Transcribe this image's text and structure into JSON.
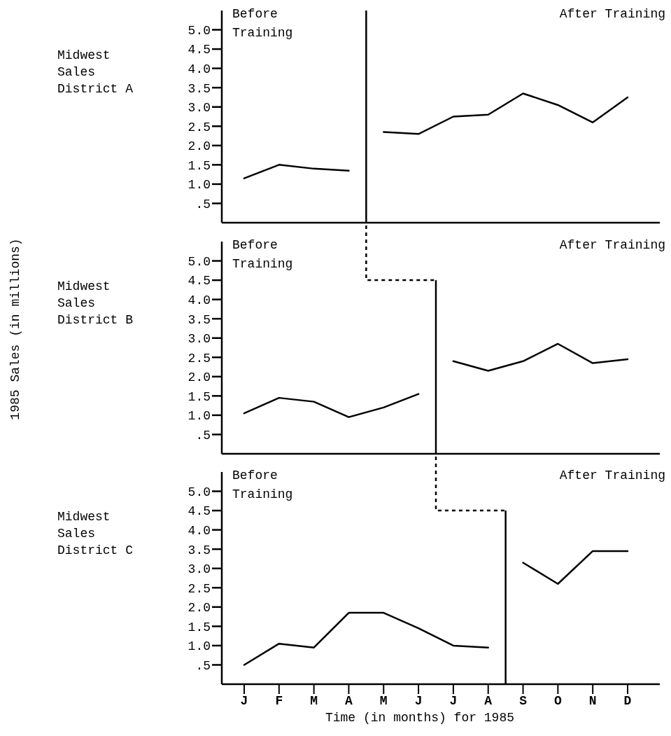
{
  "chart_data": [
    {
      "type": "line",
      "title": "Midwest Sales District A",
      "annotations": [
        "Before Training",
        "After Training"
      ],
      "categories": [
        null,
        null,
        null,
        null,
        null,
        null,
        null,
        null,
        null,
        null,
        null,
        null
      ],
      "series": [
        {
          "color": "#000000",
          "values": [
            1.15,
            1.5,
            1.4,
            1.35,
            null,
            null,
            null,
            null,
            null,
            null,
            null,
            null
          ]
        },
        {
          "color": "#000000",
          "values": [
            null,
            null,
            null,
            null,
            2.35,
            2.3,
            2.75,
            2.8,
            3.35,
            3.05,
            2.6,
            3.25
          ]
        }
      ],
      "ylim": [
        0,
        5.5
      ],
      "yticks": [
        {
          "value": 0.5,
          "label": ".5"
        },
        {
          "value": 1,
          "label": "1.0"
        },
        {
          "value": 1.5,
          "label": "1.5"
        },
        {
          "value": 2,
          "label": "2.0"
        },
        {
          "value": 2.5,
          "label": "2.5"
        },
        {
          "value": 3,
          "label": "3.0"
        },
        {
          "value": 3.5,
          "label": "3.5"
        },
        {
          "value": 4,
          "label": "4.0"
        },
        {
          "value": 4.5,
          "label": "4.5"
        },
        {
          "value": 5,
          "label": "5.0"
        }
      ],
      "tick_labels": "y",
      "marker": "none",
      "line_style": "solid"
    },
    {
      "type": "line",
      "title": "Midwest Sales District B",
      "ylabel": "1985 Sales (in millions)",
      "annotations": [
        "Before Training",
        "After Training"
      ],
      "categories": [
        null,
        null,
        null,
        null,
        null,
        null,
        null,
        null,
        null,
        null,
        null,
        null
      ],
      "series": [
        {
          "color": "#000000",
          "values": [
            1.05,
            1.45,
            1.35,
            0.95,
            1.2,
            1.55,
            null,
            null,
            null,
            null,
            null,
            null
          ]
        },
        {
          "color": "#000000",
          "values": [
            null,
            null,
            null,
            null,
            null,
            null,
            2.4,
            2.15,
            2.4,
            2.85,
            2.35,
            2.45
          ]
        }
      ],
      "ylim": [
        0,
        5.5
      ],
      "yticks": [
        {
          "value": 0.5,
          "label": ".5"
        },
        {
          "value": 1,
          "label": "1.0"
        },
        {
          "value": 1.5,
          "label": "1.5"
        },
        {
          "value": 2,
          "label": "2.0"
        },
        {
          "value": 2.5,
          "label": "2.5"
        },
        {
          "value": 3,
          "label": "3.0"
        },
        {
          "value": 3.5,
          "label": "3.5"
        },
        {
          "value": 4,
          "label": "4.0"
        },
        {
          "value": 4.5,
          "label": "4.5"
        },
        {
          "value": 5,
          "label": "5.0"
        }
      ],
      "tick_labels": "y",
      "marker": "none",
      "line_style": "solid"
    },
    {
      "type": "line",
      "title": "Midwest Sales District C",
      "xlabel": "Time (in months) for 1985",
      "annotations": [
        "Before Training",
        "After Training"
      ],
      "categories": [
        "J",
        "F",
        "M",
        "A",
        "M",
        "J",
        "J",
        "A",
        "S",
        "O",
        "N",
        "D"
      ],
      "series": [
        {
          "color": "#000000",
          "values": [
            0.5,
            1.05,
            0.95,
            1.85,
            1.85,
            1.45,
            1.0,
            0.95,
            null,
            null,
            null,
            null
          ]
        },
        {
          "color": "#000000",
          "values": [
            null,
            null,
            null,
            null,
            null,
            null,
            null,
            null,
            3.15,
            2.6,
            3.45,
            3.45
          ]
        }
      ],
      "ylim": [
        0,
        5.5
      ],
      "yticks": [
        {
          "value": 0.5,
          "label": ".5"
        },
        {
          "value": 1,
          "label": "1.0"
        },
        {
          "value": 1.5,
          "label": "1.5"
        },
        {
          "value": 2,
          "label": "2.0"
        },
        {
          "value": 2.5,
          "label": "2.5"
        },
        {
          "value": 3,
          "label": "3.0"
        },
        {
          "value": 3.5,
          "label": "3.5"
        },
        {
          "value": 4,
          "label": "4.0"
        },
        {
          "value": 4.5,
          "label": "4.5"
        },
        {
          "value": 5,
          "label": "5.0"
        }
      ],
      "marker": "none",
      "line_style": "solid"
    }
  ]
}
